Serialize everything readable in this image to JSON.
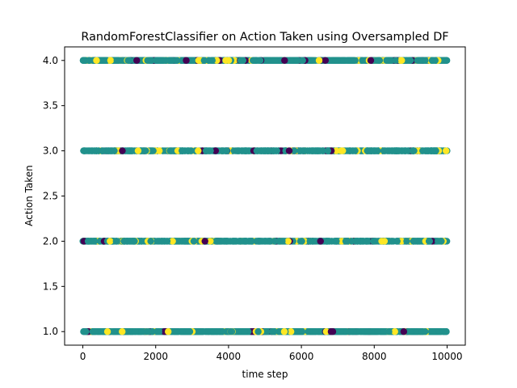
{
  "chart_data": {
    "type": "scatter",
    "title": "RandomForestClassifier on Action Taken using Oversampled DF",
    "xlabel": "time step",
    "ylabel": "Action Taken",
    "xlim": [
      -500,
      10500
    ],
    "ylim": [
      0.85,
      4.15
    ],
    "xticks": [
      0,
      2000,
      4000,
      6000,
      8000,
      10000
    ],
    "yticks": [
      1.0,
      1.5,
      2.0,
      2.5,
      3.0,
      3.5,
      4.0
    ],
    "xtick_labels": [
      "0",
      "2000",
      "4000",
      "6000",
      "8000",
      "10000"
    ],
    "ytick_labels": [
      "1.0",
      "1.5",
      "2.0",
      "2.5",
      "3.0",
      "3.5",
      "4.0"
    ],
    "grid": false,
    "legend": "none",
    "y_levels": [
      1,
      2,
      3,
      4
    ],
    "x_range": [
      0,
      10000
    ],
    "colormap": "viridis",
    "class_colors": {
      "purple": "#440154",
      "teal": "#21918c",
      "yellow": "#fde725"
    },
    "point_color_mix": {
      "teal": 0.76,
      "yellow": 0.16,
      "purple": 0.08
    },
    "note": "thousands of points densely spread across x in [0, 10000] at each of y = 1, 2, 3, 4, colored by predicted class"
  }
}
